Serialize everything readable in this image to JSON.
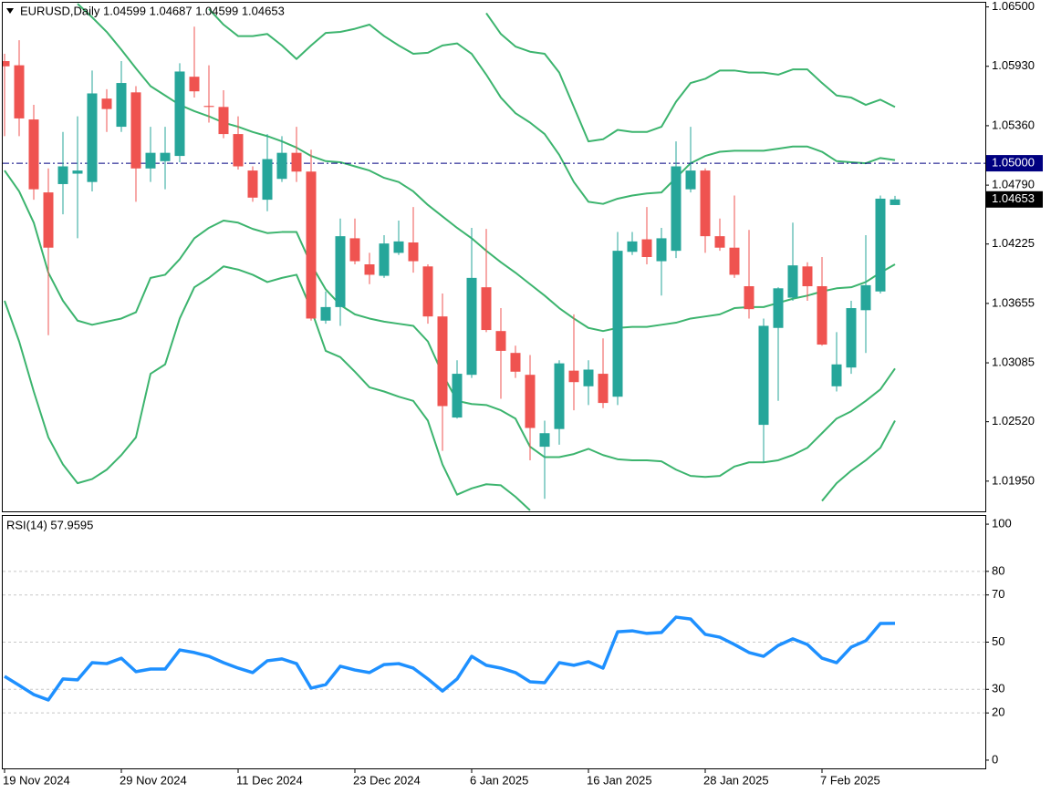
{
  "chart_data": [
    {
      "type": "candlestick",
      "title": "EURUSD,Daily  1.04599 1.04687 1.04599 1.04653",
      "categories": [
        "19 Nov 2024",
        null,
        null,
        null,
        null,
        null,
        null,
        null,
        "29 Nov 2024",
        null,
        null,
        null,
        null,
        null,
        null,
        null,
        "11 Dec 2024",
        null,
        null,
        null,
        null,
        null,
        null,
        null,
        "23 Dec 2024",
        null,
        null,
        null,
        null,
        null,
        null,
        null,
        "6 Jan 2025",
        null,
        null,
        null,
        null,
        null,
        null,
        null,
        "16 Jan 2025",
        null,
        null,
        null,
        null,
        null,
        null,
        null,
        "28 Jan 2025",
        null,
        null,
        null,
        null,
        null,
        null,
        null,
        "7 Feb 2025",
        null,
        null,
        null,
        null,
        null
      ],
      "open": [
        1.0598,
        1.0594,
        1.0542,
        1.0472,
        1.048,
        1.049,
        1.0482,
        1.0562,
        1.0535,
        1.0568,
        1.0495,
        1.0502,
        1.0507,
        1.0583,
        1.0555,
        1.0554,
        1.0528,
        1.0493,
        1.0465,
        1.0485,
        1.051,
        1.0492,
        1.0349,
        1.0362,
        1.0428,
        1.0403,
        1.0392,
        1.0414,
        1.0424,
        1.0401,
        1.0353,
        1.0256,
        1.0297,
        1.0381,
        1.0339,
        1.0318,
        1.0297,
        1.0228,
        1.0245,
        1.0301,
        1.0286,
        1.0298,
        1.0276,
        1.0415,
        1.0427,
        1.0406,
        1.0416,
        1.0475,
        1.0493,
        1.043,
        1.0419,
        1.0382,
        1.0249,
        1.0342,
        1.0371,
        1.0401,
        1.0382,
        1.0286,
        1.0304,
        1.0359,
        1.0377,
        1.04599
      ],
      "high": [
        1.0605,
        1.0618,
        1.0556,
        1.0495,
        1.053,
        1.0545,
        1.0589,
        1.0571,
        1.0598,
        1.0574,
        1.0535,
        1.0535,
        1.0596,
        1.0631,
        1.0594,
        1.057,
        1.0545,
        1.0497,
        1.0528,
        1.0526,
        1.0535,
        1.0513,
        1.0377,
        1.0447,
        1.0447,
        1.0414,
        1.0431,
        1.0445,
        1.0458,
        1.0403,
        1.0375,
        1.0311,
        1.0438,
        1.0437,
        1.0361,
        1.0325,
        1.0316,
        1.0253,
        1.0311,
        1.0355,
        1.0311,
        1.0332,
        1.0434,
        1.0434,
        1.0458,
        1.0438,
        1.0521,
        1.0535,
        1.0495,
        1.0447,
        1.0469,
        1.0436,
        1.0351,
        1.0381,
        1.0443,
        1.0405,
        1.041,
        1.0338,
        1.0368,
        1.0431,
        1.0469,
        1.04687
      ],
      "low": [
        1.0526,
        1.0526,
        1.0465,
        1.0335,
        1.0451,
        1.0428,
        1.0473,
        1.053,
        1.053,
        1.0463,
        1.0482,
        1.0475,
        1.0501,
        1.0563,
        1.0539,
        1.0524,
        1.0494,
        1.0463,
        1.0454,
        1.0482,
        1.0482,
        1.0349,
        1.0346,
        1.0344,
        1.0403,
        1.0384,
        1.039,
        1.0412,
        1.0395,
        1.0346,
        1.0224,
        1.0255,
        1.0294,
        1.0338,
        1.0274,
        1.0294,
        1.0215,
        1.0178,
        1.023,
        1.0263,
        1.0268,
        1.0265,
        1.0268,
        1.0412,
        1.0403,
        1.0373,
        1.0409,
        1.0472,
        1.0414,
        1.0416,
        1.039,
        1.0351,
        1.0213,
        1.0272,
        1.0368,
        1.0368,
        1.0325,
        1.0281,
        1.0298,
        1.0318,
        1.0375,
        1.04599
      ],
      "close": [
        1.0593,
        1.0543,
        1.0475,
        1.0419,
        1.0497,
        1.0493,
        1.0567,
        1.0552,
        1.0577,
        1.0495,
        1.051,
        1.051,
        1.0588,
        1.0569,
        1.0554,
        1.0528,
        1.0497,
        1.0467,
        1.0504,
        1.051,
        1.0492,
        1.0351,
        1.0362,
        1.043,
        1.0406,
        1.0393,
        1.0423,
        1.0425,
        1.0406,
        1.0353,
        1.0267,
        1.0298,
        1.039,
        1.034,
        1.032,
        1.03,
        1.0246,
        1.0241,
        1.0308,
        1.029,
        1.0302,
        1.027,
        1.0416,
        1.0425,
        1.041,
        1.0428,
        1.0497,
        1.0493,
        1.043,
        1.0419,
        1.0393,
        1.036,
        1.0344,
        1.038,
        1.0402,
        1.0382,
        1.0326,
        1.0307,
        1.0361,
        1.0383,
        1.0466,
        1.04653
      ],
      "up_color": "#26a69a",
      "down_color": "#ef5350",
      "bands": [
        {
          "color": "#3cb46e",
          "values": [
            null,
            null,
            null,
            null,
            null,
            null,
            null,
            null,
            null,
            null,
            null,
            null,
            null,
            null,
            null,
            null,
            null,
            null,
            null,
            null,
            null,
            null,
            null,
            null,
            null,
            null,
            null,
            null,
            null,
            null,
            null,
            null,
            null,
            1.0644,
            1.0624,
            1.0612,
            1.0607,
            1.0605,
            1.0587,
            1.0554,
            1.0521,
            1.0523,
            1.0532,
            1.053,
            1.053,
            1.0535,
            1.0559,
            1.0577,
            1.0581,
            1.0589,
            1.0589,
            1.0587,
            1.0587,
            1.0585,
            1.059,
            1.059,
            1.0577,
            1.0565,
            1.0563,
            1.0556,
            1.0561,
            1.0554
          ]
        },
        {
          "color": "#3cb46e",
          "values": [
            null,
            null,
            null,
            null,
            null,
            null,
            null,
            null,
            null,
            null,
            null,
            null,
            null,
            null,
            1.0648,
            1.0633,
            1.0622,
            1.0622,
            1.0624,
            1.0613,
            1.06,
            1.0613,
            1.0625,
            1.0626,
            1.0629,
            1.0633,
            1.0622,
            1.0613,
            1.0605,
            1.0606,
            1.0613,
            1.0615,
            1.0605,
            1.0585,
            1.0563,
            1.0548,
            1.0539,
            1.0528,
            1.0508,
            1.0482,
            1.0463,
            1.0461,
            1.0466,
            1.0469,
            1.0471,
            1.0472,
            1.0486,
            1.05,
            1.0507,
            1.0511,
            1.0512,
            1.0512,
            1.0512,
            1.0514,
            1.0516,
            1.0516,
            1.0511,
            1.0502,
            1.0501,
            1.05,
            1.0505,
            1.0503
          ]
        },
        {
          "color": "#3cb46e",
          "values": [
            null,
            null,
            null,
            null,
            null,
            1.0653,
            1.064,
            1.0626,
            1.0609,
            1.0591,
            1.0574,
            1.0565,
            1.0556,
            1.055,
            1.0545,
            1.0539,
            1.0535,
            1.053,
            1.0526,
            1.0521,
            1.0515,
            1.0507,
            1.0502,
            1.0501,
            1.0497,
            1.0493,
            1.0486,
            1.0482,
            1.0473,
            1.046,
            1.0449,
            1.0438,
            1.0428,
            1.0416,
            1.0405,
            1.0395,
            1.0384,
            1.0373,
            1.0361,
            1.0351,
            1.0342,
            1.0339,
            1.0342,
            1.0343,
            1.0343,
            1.0345,
            1.0347,
            1.0351,
            1.0353,
            1.0355,
            1.0361,
            1.0362,
            1.0362,
            1.0366,
            1.037,
            1.0373,
            1.0377,
            1.038,
            1.0381,
            1.0386,
            1.0395,
            1.0403
          ]
        },
        {
          "color": "#3cb46e",
          "values": [
            1.0493,
            1.0473,
            1.0443,
            1.0395,
            1.0368,
            1.0349,
            1.0345,
            1.0348,
            1.0351,
            1.0357,
            1.039,
            1.0393,
            1.0408,
            1.0428,
            1.0438,
            1.0445,
            1.0443,
            1.0437,
            1.0433,
            1.0434,
            1.0434,
            1.0403,
            1.0379,
            1.0364,
            1.0355,
            1.0351,
            1.0348,
            1.0346,
            1.0344,
            1.0329,
            1.0298,
            1.0272,
            1.0269,
            1.0268,
            1.0263,
            1.0255,
            1.0228,
            1.0218,
            1.0218,
            1.0221,
            1.0226,
            1.022,
            1.0216,
            1.0215,
            1.0215,
            1.0214,
            1.0206,
            1.02,
            1.0199,
            1.02,
            1.0209,
            1.0213,
            1.0213,
            1.0215,
            1.022,
            1.0227,
            1.0241,
            1.0255,
            1.0262,
            1.0272,
            1.0283,
            1.0303
          ]
        },
        {
          "color": "#3cb46e",
          "values": [
            1.0368,
            1.0329,
            1.0281,
            1.0237,
            1.0211,
            1.0193,
            1.0197,
            1.0206,
            1.022,
            1.0237,
            1.0298,
            1.0307,
            1.0351,
            1.0381,
            1.039,
            1.0401,
            1.0398,
            1.0393,
            1.0386,
            1.039,
            1.0393,
            1.036,
            1.032,
            1.0314,
            1.03,
            1.0285,
            1.0281,
            1.0276,
            1.0272,
            1.0253,
            1.0211,
            1.0182,
            1.0188,
            1.0192,
            1.0191,
            1.018,
            1.0167,
            null,
            null,
            null,
            null,
            null,
            null,
            null,
            null,
            null,
            null,
            null,
            null,
            null,
            null,
            null,
            null,
            null,
            null,
            null,
            1.0176,
            1.0193,
            1.0205,
            1.0215,
            1.0227,
            1.0253
          ]
        }
      ],
      "ylim": [
        1.0166,
        1.0654
      ],
      "yticks": [
        {
          "value": 1.065,
          "label": "1.06500"
        },
        {
          "value": 1.0593,
          "label": "1.05930"
        },
        {
          "value": 1.0536,
          "label": "1.05360"
        },
        {
          "value": 1.0479,
          "label": "1.04790"
        },
        {
          "value": 1.04225,
          "label": "1.04225"
        },
        {
          "value": 1.03655,
          "label": "1.03655"
        },
        {
          "value": 1.03085,
          "label": "1.03085"
        },
        {
          "value": 1.0252,
          "label": "1.02520"
        },
        {
          "value": 1.0195,
          "label": "1.01950"
        }
      ],
      "hline": {
        "value": 1.05,
        "label": "1.05000",
        "color": "#000080"
      },
      "last": {
        "value": 1.04653,
        "label": "1.04653"
      }
    },
    {
      "type": "line",
      "title": "RSI(14) 57.9595",
      "color": "#1e90ff",
      "values": [
        35.5,
        31.7,
        27.8,
        25.5,
        34.4,
        34.0,
        41.3,
        40.9,
        43.2,
        37.5,
        38.6,
        38.6,
        46.7,
        45.6,
        44.0,
        41.3,
        39.0,
        37.1,
        42.1,
        42.9,
        40.9,
        30.5,
        32.0,
        39.8,
        38.2,
        37.1,
        40.5,
        40.9,
        39.0,
        34.4,
        29.3,
        34.4,
        44.0,
        40.2,
        39.0,
        37.1,
        33.2,
        32.8,
        41.3,
        40.2,
        41.7,
        39.0,
        54.4,
        54.8,
        53.7,
        54.1,
        60.6,
        59.8,
        53.3,
        52.1,
        49.0,
        45.6,
        44.0,
        48.6,
        51.4,
        49.0,
        43.2,
        41.3,
        47.9,
        50.6,
        57.9,
        57.9595
      ],
      "ylim": [
        -3.5,
        103.5
      ],
      "yticks": [
        100,
        80,
        70,
        50,
        30,
        20,
        0
      ]
    }
  ]
}
